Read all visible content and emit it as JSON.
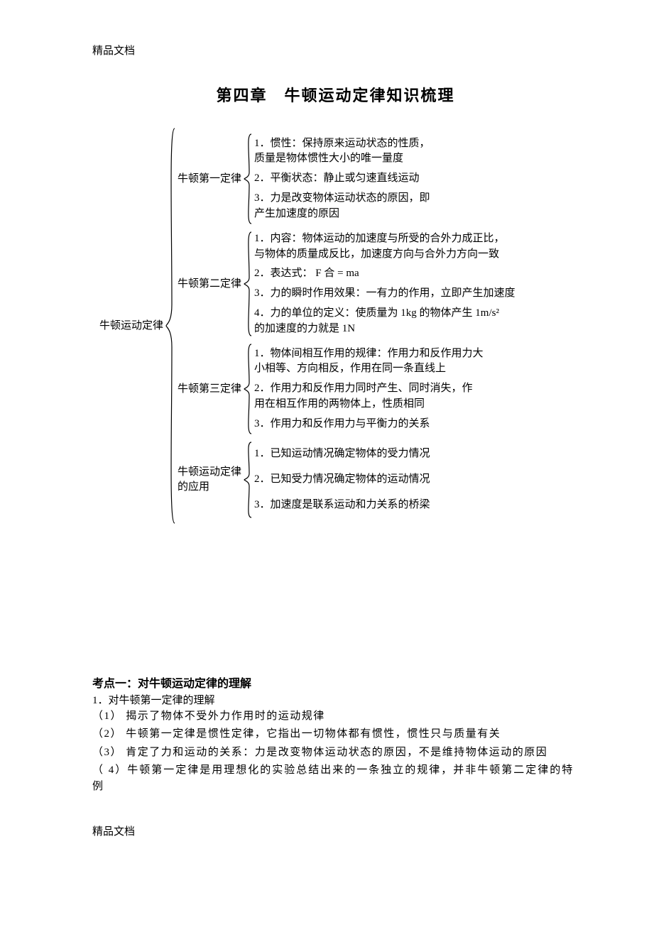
{
  "header": "精品文档",
  "footer": "精品文档",
  "title_a": "第四章",
  "title_b": "牛顿运动定律知识梳理",
  "root": "牛顿运动定律",
  "branches": [
    {
      "label": "牛顿第一定律",
      "leaves": [
        "1．惯性：保持原来运动状态的性质，\n质量是物体惯性大小的唯一量度",
        "2．平衡状态：静止或匀速直线运动",
        "3．力是改变物体运动状态的原因，即\n产生加速度的原因"
      ]
    },
    {
      "label": "牛顿第二定律",
      "leaves": [
        "1．内容：物体运动的加速度与所受的合外力成正比，\n与物体的质量成反比，加速度方向与合外力方向一致",
        "2．表达式：  F 合 = ma",
        "3．力的瞬时作用效果：一有力的作用，立即产生加速度",
        "4．力的单位的定义：使质量为  1kg 的物体产生  1m/s²\n的加速度的力就是 1N"
      ]
    },
    {
      "label": "牛顿第三定律",
      "leaves": [
        "1．物体间相互作用的规律：作用力和反作用力大\n小相等、方向相反，作用在同一条直线上",
        "2．作用力和反作用力同时产生、同时消失，作\n用在相互作用的两物体上，性质相同",
        "3．作用力和反作用力与平衡力的关系"
      ]
    },
    {
      "label": "牛顿运动定律\n的应用",
      "leaves": [
        "1．已知运动情况确定物体的受力情况",
        "2．已知受力情况确定物体的运动情况",
        "3．加速度是联系运动和力关系的桥梁"
      ]
    }
  ],
  "exam": {
    "heading": "考点一：对牛顿运动定律的理解",
    "sub": "1．对牛顿第一定律的理解",
    "points": [
      "（1） 揭示了物体不受外力作用时的运动规律",
      "（2） 牛顿第一定律是惯性定律，它指出一切物体都有惯性，惯性只与质量有关",
      "（3） 肯定了力和运动的关系：力是改变物体运动状态的原因，不是维持物体运动的原因",
      "（ 4）牛顿第一定律是用理想化的实验总结出来的一条独立的规律，并非牛顿第二定律的特\n例"
    ]
  },
  "colors": {
    "text": "#000000",
    "bg": "#ffffff"
  },
  "fontsizes": {
    "title": 22,
    "body": 15,
    "section": 16
  }
}
